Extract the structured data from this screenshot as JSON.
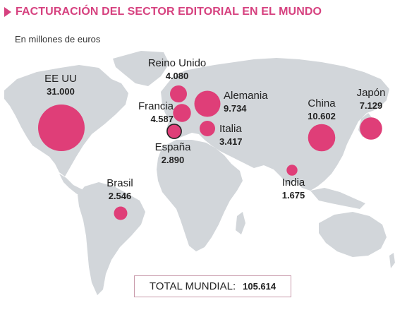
{
  "title": "FACTURACIÓN DEL SECTOR EDITORIAL EN EL MUNDO",
  "subtitle": "En millones de euros",
  "colors": {
    "accent": "#d6417f",
    "bubble": "#df3e78",
    "land": "#d2d6da",
    "highlight_outline": "#222222"
  },
  "icons": {
    "title_marker": "triangle-marker-icon"
  },
  "countries": [
    {
      "name": "EE UU",
      "value": "31.000",
      "amount": 31000
    },
    {
      "name": "Reino Unido",
      "value": "4.080",
      "amount": 4080
    },
    {
      "name": "Francia",
      "value": "4.587",
      "amount": 4587
    },
    {
      "name": "Alemania",
      "value": "9.734",
      "amount": 9734
    },
    {
      "name": "Italia",
      "value": "3.417",
      "amount": 3417
    },
    {
      "name": "España",
      "value": "2.890",
      "amount": 2890,
      "highlighted": true
    },
    {
      "name": "China",
      "value": "10.602",
      "amount": 10602
    },
    {
      "name": "Japón",
      "value": "7.129",
      "amount": 7129
    },
    {
      "name": "India",
      "value": "1.675",
      "amount": 1675
    },
    {
      "name": "Brasil",
      "value": "2.546",
      "amount": 2546
    }
  ],
  "total": {
    "label": "TOTAL MUNDIAL:",
    "value": "105.614"
  }
}
